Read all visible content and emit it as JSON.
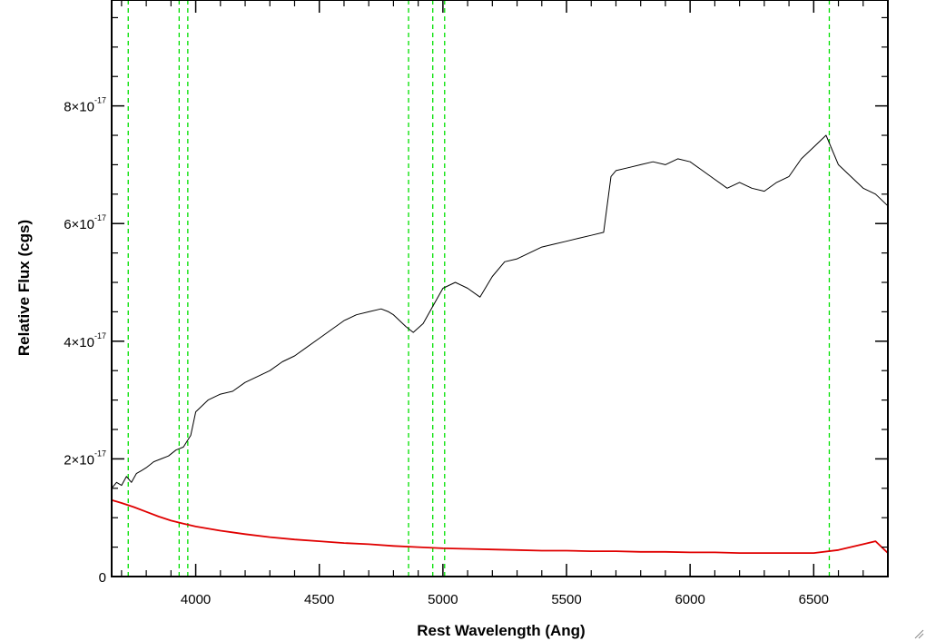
{
  "chart_data": {
    "type": "line",
    "xlabel": "Rest Wavelength (Ang)",
    "ylabel": "Relative Flux (cgs)",
    "xlim": [
      3660,
      6800
    ],
    "ylim": [
      0,
      9.8e-17
    ],
    "x_ticks": [
      4000,
      4500,
      5000,
      5500,
      6000,
      6500
    ],
    "x_tick_labels": [
      "4000",
      "4500",
      "5000",
      "5500",
      "6000",
      "6500"
    ],
    "y_ticks": [
      0,
      2e-17,
      4e-17,
      6e-17,
      8e-17
    ],
    "y_tick_labels": [
      {
        "mant": "0",
        "exp": ""
      },
      {
        "mant": "2×10",
        "exp": "-17"
      },
      {
        "mant": "4×10",
        "exp": "-17"
      },
      {
        "mant": "6×10",
        "exp": "-17"
      },
      {
        "mant": "8×10",
        "exp": "-17"
      }
    ],
    "grid": false,
    "reference_lines": {
      "color": "#00e000",
      "style": "dashed",
      "x": [
        3727,
        3933,
        3968,
        4861,
        4959,
        5007,
        6563
      ]
    },
    "series": [
      {
        "color": "#000000",
        "x": [
          3660,
          3680,
          3700,
          3720,
          3740,
          3760,
          3780,
          3800,
          3830,
          3860,
          3890,
          3920,
          3950,
          3980,
          4000,
          4050,
          4100,
          4150,
          4200,
          4250,
          4300,
          4350,
          4400,
          4450,
          4500,
          4550,
          4600,
          4650,
          4700,
          4750,
          4780,
          4800,
          4850,
          4880,
          4920,
          4960,
          5000,
          5050,
          5100,
          5150,
          5200,
          5250,
          5300,
          5350,
          5400,
          5450,
          5500,
          5550,
          5600,
          5650,
          5680,
          5700,
          5750,
          5800,
          5850,
          5900,
          5950,
          6000,
          6050,
          6100,
          6150,
          6200,
          6250,
          6300,
          6350,
          6400,
          6450,
          6500,
          6550,
          6600,
          6650,
          6700,
          6750,
          6800
        ],
        "y": [
          1.5e-17,
          1.6e-17,
          1.55e-17,
          1.7e-17,
          1.6e-17,
          1.75e-17,
          1.8e-17,
          1.85e-17,
          1.95e-17,
          2e-17,
          2.05e-17,
          2.15e-17,
          2.2e-17,
          2.4e-17,
          2.8e-17,
          3e-17,
          3.1e-17,
          3.15e-17,
          3.3e-17,
          3.4e-17,
          3.5e-17,
          3.65e-17,
          3.75e-17,
          3.9e-17,
          4.05e-17,
          4.2e-17,
          4.35e-17,
          4.45e-17,
          4.5e-17,
          4.55e-17,
          4.5e-17,
          4.45e-17,
          4.25e-17,
          4.15e-17,
          4.3e-17,
          4.6e-17,
          4.9e-17,
          5e-17,
          4.9e-17,
          4.75e-17,
          5.1e-17,
          5.35e-17,
          5.4e-17,
          5.5e-17,
          5.6e-17,
          5.65e-17,
          5.7e-17,
          5.75e-17,
          5.8e-17,
          5.85e-17,
          6.8e-17,
          6.9e-17,
          6.95e-17,
          7e-17,
          7.05e-17,
          7e-17,
          7.1e-17,
          7.05e-17,
          6.9e-17,
          6.75e-17,
          6.6e-17,
          6.7e-17,
          6.6e-17,
          6.55e-17,
          6.7e-17,
          6.8e-17,
          7.1e-17,
          7.3e-17,
          7.5e-17,
          7e-17,
          6.8e-17,
          6.6e-17,
          6.5e-17,
          6.3e-17
        ]
      },
      {
        "color": "#e00000",
        "x": [
          3660,
          3700,
          3750,
          3800,
          3850,
          3900,
          3950,
          4000,
          4100,
          4200,
          4300,
          4400,
          4500,
          4600,
          4700,
          4800,
          4900,
          5000,
          5100,
          5200,
          5300,
          5400,
          5500,
          5600,
          5700,
          5800,
          5900,
          6000,
          6100,
          6200,
          6300,
          6400,
          6500,
          6600,
          6700,
          6750,
          6800
        ],
        "y": [
          1.3e-17,
          1.25e-17,
          1.18e-17,
          1.1e-17,
          1.02e-17,
          9.5e-18,
          9e-18,
          8.5e-18,
          7.8e-18,
          7.2e-18,
          6.7e-18,
          6.3e-18,
          6e-18,
          5.7e-18,
          5.5e-18,
          5.2e-18,
          5e-18,
          4.8e-18,
          4.7e-18,
          4.6e-18,
          4.5e-18,
          4.4e-18,
          4.4e-18,
          4.3e-18,
          4.3e-18,
          4.2e-18,
          4.2e-18,
          4.1e-18,
          4.1e-18,
          4e-18,
          4e-18,
          4e-18,
          4e-18,
          4.5e-18,
          5.5e-18,
          6e-18,
          4e-18
        ]
      }
    ]
  }
}
